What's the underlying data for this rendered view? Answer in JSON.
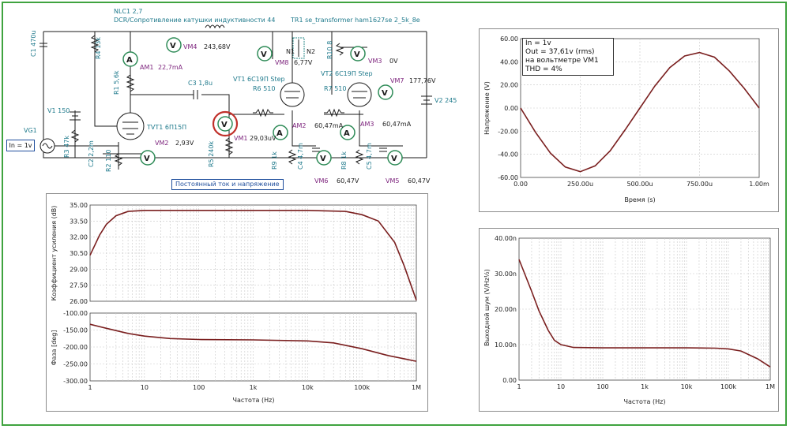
{
  "schematic": {
    "nlc1": "NLC1 2,7",
    "dcr_label": "DCR/Сопротивление катушки индуктивности 44",
    "tr1": "TR1 se_transformer ham1627se 2_5k_8e",
    "c1": "C1 470u",
    "r4": "R4 13k",
    "am1": "AM1",
    "am1_val": "22,7mA",
    "vm4": "VM4",
    "vm4_val": "243,68V",
    "r1": "R1 5,6k",
    "c3": "C3 1,8u",
    "vt1": "VT1 6С19П Step",
    "vt2": "VT2 6С19П Step",
    "r6": "R6 510",
    "r7": "R7 510",
    "vm8": "VM8",
    "vm8_val": "6,77V",
    "n1": "N1",
    "n2": "N2",
    "r10": "R10 8",
    "vm3": "VM3",
    "vm3_val": "0V",
    "vm7": "VM7",
    "vm7_val": "177,76V",
    "v2": "V2 245",
    "v1": "V1 150",
    "vg1": "VG1",
    "in_label": "In = 1v",
    "r3": "R3 47k",
    "c2": "C2 2,2m",
    "r2": "R2 110",
    "tvt1": "TVT1 6П15П",
    "vm2": "VM2",
    "vm2_val": "2,93V",
    "r5": "R5 240k",
    "vm1": "VM1",
    "vm1_val": "29,03uV",
    "am2": "AM2",
    "am2_val": "60,47mA",
    "am3": "AM3",
    "am3_val": "60,47mA",
    "r9": "R9 1k",
    "c4": "C4 4,7m",
    "r8": "R8 1k",
    "c5": "C5 4,7m",
    "vm6": "VM6",
    "vm6_val": "60,47V",
    "vm5": "VM5",
    "vm5_val": "60,47V",
    "dc_button": "Постоянный ток и напряжение",
    "meter_v": "V",
    "meter_a": "A"
  },
  "time_plot": {
    "info_lines": [
      "In = 1v",
      "Out = 37,61v (rms)",
      "на вольтметре VM1",
      "THD = 4%"
    ],
    "ylabel": "Напряжение (V)",
    "xlabel": "Время (s)",
    "y_ticks": [
      "60.00",
      "40.00",
      "20.00",
      "0.00",
      "-20.00",
      "-40.00",
      "-60.00"
    ],
    "x_ticks": [
      "0.00",
      "250.00u",
      "500.00u",
      "750.00u",
      "1.00m"
    ]
  },
  "bode_plot": {
    "gain_ylabel": "Коэффициент усиления (dB)",
    "phase_ylabel": "Фаза [deg]",
    "xlabel": "Частота (Hz)",
    "gain_ticks": [
      "35.00",
      "33.50",
      "32.00",
      "30.50",
      "29.00",
      "27.50",
      "26.00"
    ],
    "phase_ticks": [
      "-100.00",
      "-150.00",
      "-200.00",
      "-250.00",
      "-300.00"
    ],
    "x_ticks": [
      "1",
      "10",
      "100",
      "1k",
      "10k",
      "100k",
      "1M"
    ]
  },
  "noise_plot": {
    "ylabel": "Выходной шум (V/Hz½)",
    "xlabel": "Частота (Hz)",
    "y_ticks": [
      "40.00n",
      "30.00n",
      "20.00n",
      "10.00n",
      "0.00"
    ],
    "x_ticks": [
      "1",
      "10",
      "100",
      "1k",
      "10k",
      "100k",
      "1M"
    ]
  },
  "chart_data": [
    {
      "type": "line",
      "xlabel": "Время (s)",
      "ylabel": "Напряжение (V)",
      "xlim": [
        0,
        0.001
      ],
      "ylim": [
        -60,
        60
      ],
      "x": [
        0,
        6.25e-05,
        0.000125,
        0.0001875,
        0.00025,
        0.0003125,
        0.000375,
        0.0004375,
        0.0005,
        0.0005625,
        0.000625,
        0.0006875,
        0.00075,
        0.0008125,
        0.000875,
        0.0009375,
        0.001
      ],
      "series": [
        {
          "values": [
            0,
            -21,
            -39,
            -51,
            -55,
            -50,
            -37,
            -19,
            0,
            19,
            35,
            45,
            48,
            44,
            32,
            17,
            0
          ]
        }
      ],
      "grid": true
    },
    {
      "type": "line",
      "xlabel": "Частота (Hz)",
      "ylabel": "Коэффициент усиления (dB)",
      "xscale": "log",
      "xlim": [
        1,
        1000000
      ],
      "ylim": [
        26,
        35
      ],
      "x": [
        1,
        1.5,
        2,
        3,
        5,
        10,
        30,
        100,
        1000,
        10000,
        50000,
        100000,
        200000,
        400000,
        600000,
        800000,
        1000000
      ],
      "series": [
        {
          "values": [
            30.3,
            32.2,
            33.2,
            34.0,
            34.4,
            34.5,
            34.5,
            34.5,
            34.5,
            34.5,
            34.4,
            34.1,
            33.5,
            31.5,
            29.3,
            27.5,
            26.1
          ]
        }
      ],
      "grid": true
    },
    {
      "type": "line",
      "xlabel": "Частота (Hz)",
      "ylabel": "Фаза [deg]",
      "xscale": "log",
      "xlim": [
        1,
        1000000
      ],
      "ylim": [
        -300,
        -100
      ],
      "x": [
        1,
        2,
        5,
        10,
        30,
        100,
        1000,
        10000,
        30000,
        100000,
        300000,
        1000000
      ],
      "series": [
        {
          "values": [
            -133,
            -145,
            -160,
            -168,
            -175,
            -178,
            -179,
            -182,
            -188,
            -205,
            -225,
            -242
          ]
        }
      ],
      "grid": true
    },
    {
      "type": "line",
      "xlabel": "Частота (Hz)",
      "ylabel": "Выходной шум (V/Hz½)",
      "xscale": "log",
      "xlim": [
        1,
        1000000
      ],
      "ylim": [
        0,
        4e-08
      ],
      "x": [
        1,
        2,
        3,
        5,
        7,
        10,
        20,
        100,
        1000,
        10000,
        50000,
        100000,
        200000,
        500000,
        1000000
      ],
      "series": [
        {
          "values": [
            3.4e-08,
            2.5e-08,
            1.95e-08,
            1.4e-08,
            1.12e-08,
            1e-08,
            9.2e-09,
            9.1e-09,
            9.1e-09,
            9.1e-09,
            9e-09,
            8.8e-09,
            8.2e-09,
            6e-09,
            3.7e-09
          ]
        }
      ],
      "grid": true
    }
  ]
}
